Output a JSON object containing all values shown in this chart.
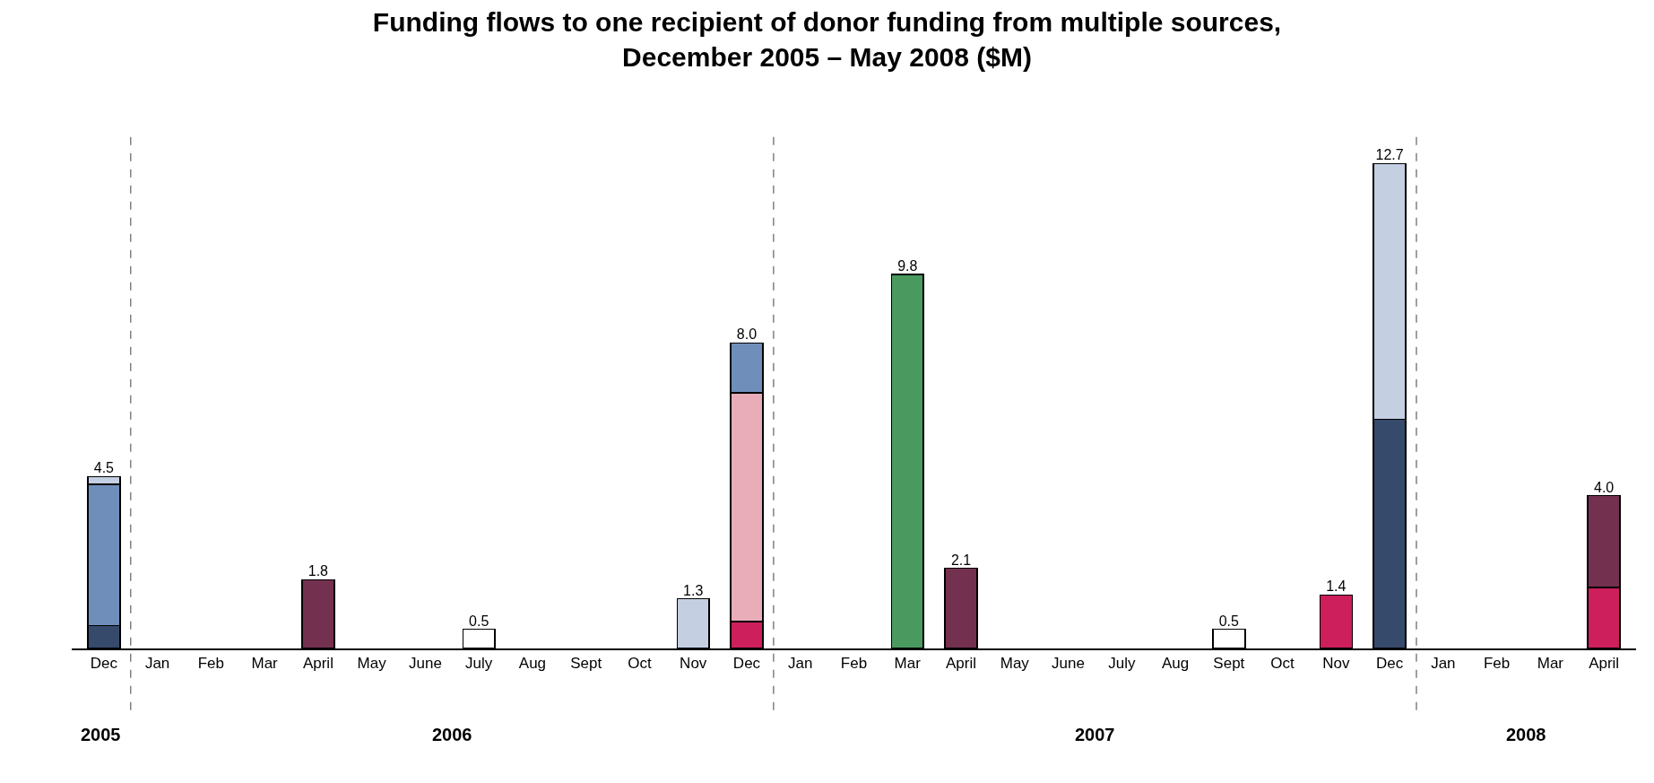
{
  "chart_data": {
    "type": "bar",
    "stacked": true,
    "title": "Funding flows to one recipient of donor funding from multiple sources,\nDecember 2005 – May 2008 ($M)",
    "categories": [
      "Dec",
      "Jan",
      "Feb",
      "Mar",
      "April",
      "May",
      "June",
      "July",
      "Aug",
      "Sept",
      "Oct",
      "Nov",
      "Dec",
      "Jan",
      "Feb",
      "Mar",
      "April",
      "May",
      "June",
      "July",
      "Aug",
      "Sept",
      "Oct",
      "Nov",
      "Dec",
      "Jan",
      "Feb",
      "Mar",
      "April"
    ],
    "tick_labels": "x",
    "series": [
      {
        "color": "#364a6b",
        "values": [
          0.6,
          null,
          null,
          null,
          null,
          null,
          null,
          null,
          null,
          null,
          null,
          null,
          null,
          null,
          null,
          null,
          null,
          null,
          null,
          null,
          null,
          null,
          null,
          null,
          6.0,
          null,
          null,
          null,
          null
        ]
      },
      {
        "color": "#cc1f5c",
        "values": [
          null,
          null,
          null,
          null,
          null,
          null,
          null,
          null,
          null,
          null,
          null,
          null,
          0.7,
          null,
          null,
          null,
          null,
          null,
          null,
          null,
          null,
          null,
          null,
          1.4,
          null,
          null,
          null,
          null,
          1.6
        ],
        "value_labels": [
          null,
          null,
          null,
          null,
          null,
          null,
          null,
          null,
          null,
          null,
          null,
          null,
          null,
          null,
          null,
          null,
          null,
          null,
          null,
          null,
          null,
          null,
          null,
          "1.4",
          null,
          null,
          null,
          null,
          null
        ]
      },
      {
        "color": "#e8adb9",
        "values": [
          null,
          null,
          null,
          null,
          null,
          null,
          null,
          null,
          null,
          null,
          null,
          null,
          6.0,
          null,
          null,
          null,
          null,
          null,
          null,
          null,
          null,
          null,
          null,
          null,
          null,
          null,
          null,
          null,
          null
        ]
      },
      {
        "color": "#6f8fba",
        "values": [
          3.7,
          null,
          null,
          null,
          null,
          null,
          null,
          null,
          null,
          null,
          null,
          null,
          1.3,
          null,
          null,
          null,
          null,
          null,
          null,
          null,
          null,
          null,
          null,
          null,
          null,
          null,
          null,
          null,
          null
        ]
      },
      {
        "color": "#c4cfe2",
        "values": [
          0.2,
          null,
          null,
          null,
          null,
          null,
          null,
          null,
          null,
          null,
          null,
          1.3,
          null,
          null,
          null,
          null,
          null,
          null,
          null,
          null,
          null,
          null,
          null,
          null,
          6.7,
          null,
          null,
          null,
          null
        ],
        "value_labels": [
          null,
          null,
          null,
          null,
          null,
          null,
          null,
          null,
          null,
          null,
          null,
          "1.3",
          null,
          null,
          null,
          null,
          null,
          null,
          null,
          null,
          null,
          null,
          null,
          null,
          null,
          null,
          null,
          null,
          null
        ]
      },
      {
        "color": "#74304f",
        "values": [
          null,
          null,
          null,
          null,
          1.8,
          null,
          null,
          null,
          null,
          null,
          null,
          null,
          null,
          null,
          null,
          null,
          2.1,
          null,
          null,
          null,
          null,
          null,
          null,
          null,
          null,
          null,
          null,
          null,
          2.4
        ],
        "value_labels": [
          null,
          null,
          null,
          null,
          "1.8",
          null,
          null,
          null,
          null,
          null,
          null,
          null,
          null,
          null,
          null,
          null,
          "2.1",
          null,
          null,
          null,
          null,
          null,
          null,
          null,
          null,
          null,
          null,
          null,
          null
        ]
      },
      {
        "color": "#4a9a5f",
        "values": [
          null,
          null,
          null,
          null,
          null,
          null,
          null,
          null,
          null,
          null,
          null,
          null,
          null,
          null,
          null,
          9.8,
          null,
          null,
          null,
          null,
          null,
          null,
          null,
          null,
          null,
          null,
          null,
          null,
          null
        ],
        "value_labels": [
          null,
          null,
          null,
          null,
          null,
          null,
          null,
          null,
          null,
          null,
          null,
          null,
          null,
          null,
          null,
          "9.8",
          null,
          null,
          null,
          null,
          null,
          null,
          null,
          null,
          null,
          null,
          null,
          null,
          null
        ]
      },
      {
        "color": "#ffffff",
        "values": [
          null,
          null,
          null,
          null,
          null,
          null,
          null,
          0.5,
          null,
          null,
          null,
          null,
          null,
          null,
          null,
          null,
          null,
          null,
          null,
          null,
          null,
          0.5,
          null,
          null,
          null,
          null,
          null,
          null,
          null
        ],
        "value_labels": [
          null,
          null,
          null,
          null,
          null,
          null,
          null,
          "0.5",
          null,
          null,
          null,
          null,
          null,
          null,
          null,
          null,
          null,
          null,
          null,
          null,
          null,
          "0.5",
          null,
          null,
          null,
          null,
          null,
          null,
          null
        ]
      }
    ],
    "totals": [
      "4.5",
      null,
      null,
      null,
      null,
      null,
      null,
      null,
      null,
      null,
      null,
      null,
      "8.0",
      null,
      null,
      null,
      null,
      null,
      null,
      null,
      null,
      null,
      null,
      null,
      "12.7",
      null,
      null,
      null,
      "4.0"
    ],
    "annotations": [
      "2005",
      "2006",
      "2007",
      "2008"
    ]
  }
}
